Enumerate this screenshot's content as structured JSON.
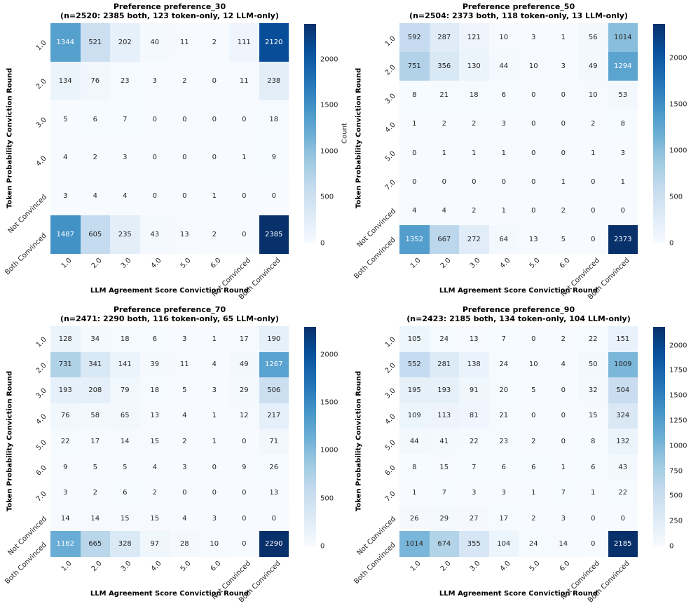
{
  "figure": {
    "background": "#ffffff",
    "colormap": "Blues",
    "text_color": "#262626"
  },
  "chart_data": [
    {
      "type": "heatmap",
      "title": "Preference preference_30",
      "subtitle": "(n=2520: 2385 both, 123 token-only, 12 LLM-only)",
      "xlabel": "LLM Agreement Score Conviction Round",
      "ylabel": "Token Probability Conviction Round",
      "colorbar_label": "Count",
      "x_categories": [
        "1.0",
        "2.0",
        "3.0",
        "4.0",
        "5.0",
        "6.0",
        "Not Convinced",
        "Both Convinced"
      ],
      "y_categories": [
        "1.0",
        "2.0",
        "3.0",
        "4.0",
        "Not Convinced",
        "Both Convinced"
      ],
      "values": [
        [
          1344,
          521,
          202,
          40,
          11,
          2,
          111,
          2120
        ],
        [
          134,
          76,
          23,
          3,
          2,
          0,
          11,
          238
        ],
        [
          5,
          6,
          7,
          0,
          0,
          0,
          0,
          18
        ],
        [
          4,
          2,
          3,
          0,
          0,
          0,
          1,
          9
        ],
        [
          3,
          4,
          4,
          0,
          0,
          1,
          0,
          0
        ],
        [
          1487,
          605,
          235,
          43,
          13,
          2,
          0,
          2385
        ]
      ],
      "vmin": 0,
      "vmax": 2385,
      "colorbar_ticks": [
        0,
        500,
        1000,
        1500,
        2000
      ]
    },
    {
      "type": "heatmap",
      "title": "Preference preference_50",
      "subtitle": "(n=2504: 2373 both, 118 token-only, 13 LLM-only)",
      "xlabel": "LLM Agreement Score Conviction Round",
      "ylabel": "Token Probability Conviction Round",
      "colorbar_label": "",
      "x_categories": [
        "1.0",
        "2.0",
        "3.0",
        "4.0",
        "5.0",
        "6.0",
        "Not Convinced",
        "Both Convinced"
      ],
      "y_categories": [
        "1.0",
        "2.0",
        "3.0",
        "4.0",
        "5.0",
        "7.0",
        "Not Convinced",
        "Both Convinced"
      ],
      "values": [
        [
          592,
          287,
          121,
          10,
          3,
          1,
          56,
          1014
        ],
        [
          751,
          356,
          130,
          44,
          10,
          3,
          49,
          1294
        ],
        [
          8,
          21,
          18,
          6,
          0,
          0,
          10,
          53
        ],
        [
          1,
          2,
          2,
          3,
          0,
          0,
          2,
          8
        ],
        [
          0,
          1,
          1,
          1,
          0,
          0,
          1,
          3
        ],
        [
          0,
          0,
          0,
          0,
          0,
          1,
          0,
          1
        ],
        [
          4,
          4,
          2,
          1,
          0,
          2,
          0,
          0
        ],
        [
          1352,
          667,
          272,
          64,
          13,
          5,
          0,
          2373
        ]
      ],
      "vmin": 0,
      "vmax": 2373,
      "colorbar_ticks": [
        0,
        500,
        1000,
        1500,
        2000
      ]
    },
    {
      "type": "heatmap",
      "title": "Preference preference_70",
      "subtitle": "(n=2471: 2290 both, 116 token-only, 65 LLM-only)",
      "xlabel": "LLM Agreement Score Conviction Round",
      "ylabel": "Token Probability Conviction Round",
      "colorbar_label": "",
      "x_categories": [
        "1.0",
        "2.0",
        "3.0",
        "4.0",
        "5.0",
        "6.0",
        "Not Convinced",
        "Both Convinced"
      ],
      "y_categories": [
        "1.0",
        "2.0",
        "3.0",
        "4.0",
        "5.0",
        "6.0",
        "7.0",
        "Not Convinced",
        "Both Convinced"
      ],
      "values": [
        [
          128,
          34,
          18,
          6,
          3,
          1,
          17,
          190
        ],
        [
          731,
          341,
          141,
          39,
          11,
          4,
          49,
          1267
        ],
        [
          193,
          208,
          79,
          18,
          5,
          3,
          29,
          506
        ],
        [
          76,
          58,
          65,
          13,
          4,
          1,
          12,
          217
        ],
        [
          22,
          17,
          14,
          15,
          2,
          1,
          0,
          71
        ],
        [
          9,
          5,
          5,
          4,
          3,
          0,
          9,
          26
        ],
        [
          3,
          2,
          6,
          2,
          0,
          0,
          0,
          13
        ],
        [
          14,
          14,
          15,
          15,
          4,
          3,
          0,
          0
        ],
        [
          1162,
          665,
          328,
          97,
          28,
          10,
          0,
          2290
        ]
      ],
      "vmin": 0,
      "vmax": 2290,
      "colorbar_ticks": [
        0,
        500,
        1000,
        1500,
        2000
      ]
    },
    {
      "type": "heatmap",
      "title": "Preference preference_90",
      "subtitle": "(n=2423: 2185 both, 134 token-only, 104 LLM-only)",
      "xlabel": "LLM Agreement Score Conviction Round",
      "ylabel": "Token Probability Conviction Round",
      "colorbar_label": "",
      "x_categories": [
        "1.0",
        "2.0",
        "3.0",
        "4.0",
        "5.0",
        "6.0",
        "Not Convinced",
        "Both Convinced"
      ],
      "y_categories": [
        "1.0",
        "2.0",
        "3.0",
        "4.0",
        "5.0",
        "6.0",
        "7.0",
        "Not Convinced",
        "Both Convinced"
      ],
      "values": [
        [
          105,
          24,
          13,
          7,
          0,
          2,
          22,
          151
        ],
        [
          552,
          281,
          138,
          24,
          10,
          4,
          50,
          1009
        ],
        [
          195,
          193,
          91,
          20,
          5,
          0,
          32,
          504
        ],
        [
          109,
          113,
          81,
          21,
          0,
          0,
          15,
          324
        ],
        [
          44,
          41,
          22,
          23,
          2,
          0,
          8,
          132
        ],
        [
          8,
          15,
          7,
          6,
          6,
          1,
          6,
          43
        ],
        [
          1,
          7,
          3,
          3,
          1,
          7,
          1,
          22
        ],
        [
          26,
          29,
          27,
          17,
          2,
          3,
          0,
          0
        ],
        [
          1014,
          674,
          355,
          104,
          24,
          14,
          0,
          2185
        ]
      ],
      "vmin": 0,
      "vmax": 2185,
      "colorbar_ticks": [
        0,
        250,
        500,
        750,
        1000,
        1250,
        1500,
        1750,
        2000
      ]
    }
  ]
}
